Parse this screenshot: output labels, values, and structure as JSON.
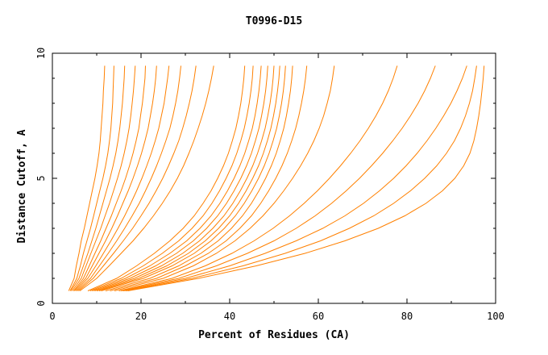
{
  "chart_data": {
    "type": "line",
    "title": "T0996-D15",
    "xlabel": "Percent of Residues (CA)",
    "ylabel": "Distance Cutoff, A",
    "xlim": [
      0,
      100
    ],
    "ylim": [
      0,
      10
    ],
    "x_ticks": [
      0,
      20,
      40,
      60,
      80,
      100
    ],
    "y_ticks": [
      0,
      5,
      10
    ],
    "line_color": "#ff8000",
    "grid": false,
    "cutoffs": [
      0.5,
      1,
      1.5,
      2,
      2.5,
      3,
      3.5,
      4,
      4.5,
      5,
      5.5,
      6,
      6.5,
      7,
      7.5,
      8,
      8.5,
      9,
      9.5
    ],
    "series": [
      {
        "x": [
          3.7,
          4.9,
          5.4,
          6.0,
          6.5,
          7.2,
          7.8,
          8.4,
          9.0,
          9.6,
          10.1,
          10.5,
          10.8,
          11.0,
          11.2,
          11.4,
          11.5,
          11.7,
          11.8
        ]
      },
      {
        "x": [
          4.0,
          5.5,
          6.3,
          7.0,
          7.8,
          8.6,
          9.3,
          10.0,
          10.7,
          11.4,
          12.0,
          12.5,
          12.9,
          13.2,
          13.4,
          13.6,
          13.7,
          13.8,
          13.9
        ]
      },
      {
        "x": [
          4.2,
          6.0,
          7.0,
          8.0,
          8.9,
          9.8,
          10.6,
          11.4,
          12.2,
          13.0,
          13.7,
          14.3,
          14.8,
          15.2,
          15.5,
          15.8,
          16.0,
          16.2,
          16.3
        ]
      },
      {
        "x": [
          4.5,
          6.5,
          7.6,
          8.7,
          9.8,
          10.9,
          11.9,
          12.9,
          13.8,
          14.7,
          15.5,
          16.2,
          16.8,
          17.3,
          17.7,
          18.0,
          18.3,
          18.5,
          18.7
        ]
      },
      {
        "x": [
          4.8,
          7.0,
          8.3,
          9.6,
          10.9,
          12.1,
          13.3,
          14.4,
          15.5,
          16.5,
          17.4,
          18.2,
          18.9,
          19.5,
          19.9,
          20.3,
          20.6,
          20.9,
          21.0
        ]
      },
      {
        "x": [
          5.0,
          7.5,
          9.0,
          10.5,
          12.0,
          13.4,
          14.7,
          15.9,
          17.1,
          18.2,
          19.2,
          20.1,
          20.9,
          21.6,
          22.1,
          22.6,
          23.0,
          23.3,
          23.5
        ]
      },
      {
        "x": [
          5.3,
          8.0,
          9.8,
          11.5,
          13.2,
          14.8,
          16.3,
          17.7,
          19.0,
          20.2,
          21.3,
          22.3,
          23.2,
          24.0,
          24.6,
          25.2,
          25.6,
          26.0,
          26.3
        ]
      },
      {
        "x": [
          5.6,
          8.6,
          10.6,
          12.6,
          14.5,
          16.3,
          18.0,
          19.6,
          21.0,
          22.3,
          23.5,
          24.6,
          25.6,
          26.5,
          27.2,
          27.8,
          28.3,
          28.7,
          29.0
        ]
      },
      {
        "x": [
          5.9,
          9.2,
          11.5,
          13.8,
          16.0,
          18.1,
          20.0,
          21.8,
          23.4,
          24.9,
          26.2,
          27.4,
          28.5,
          29.4,
          30.2,
          30.9,
          31.5,
          32.0,
          32.4
        ]
      },
      {
        "x": [
          6.2,
          10.0,
          12.8,
          15.5,
          18.2,
          20.6,
          22.8,
          24.8,
          26.6,
          28.2,
          29.6,
          30.8,
          31.9,
          32.9,
          33.8,
          34.6,
          35.3,
          35.9,
          36.4
        ]
      },
      {
        "x": [
          8.0,
          14.5,
          19.0,
          23.0,
          26.5,
          29.5,
          32.0,
          34.0,
          35.8,
          37.3,
          38.6,
          39.7,
          40.6,
          41.4,
          42.0,
          42.5,
          42.9,
          43.2,
          43.4
        ]
      },
      {
        "x": [
          8.5,
          15.5,
          20.5,
          24.8,
          28.5,
          31.5,
          34.0,
          36.0,
          37.7,
          39.2,
          40.5,
          41.6,
          42.5,
          43.3,
          43.9,
          44.4,
          44.8,
          45.1,
          45.3
        ]
      },
      {
        "x": [
          9.0,
          16.5,
          22.0,
          26.5,
          30.3,
          33.3,
          35.8,
          37.8,
          39.5,
          41.0,
          42.3,
          43.4,
          44.3,
          45.1,
          45.7,
          46.2,
          46.6,
          46.9,
          47.1
        ]
      },
      {
        "x": [
          9.5,
          17.5,
          23.3,
          28.0,
          31.8,
          34.8,
          37.3,
          39.3,
          41.0,
          42.5,
          43.8,
          44.9,
          45.8,
          46.6,
          47.2,
          47.7,
          48.1,
          48.4,
          48.6
        ]
      },
      {
        "x": [
          10.0,
          18.5,
          24.6,
          29.4,
          33.2,
          36.2,
          38.7,
          40.7,
          42.4,
          43.9,
          45.2,
          46.3,
          47.2,
          48.0,
          48.6,
          49.1,
          49.5,
          49.8,
          50.0
        ]
      },
      {
        "x": [
          10.5,
          19.5,
          25.8,
          30.7,
          34.5,
          37.5,
          40.0,
          42.0,
          43.7,
          45.2,
          46.5,
          47.6,
          48.5,
          49.3,
          49.9,
          50.4,
          50.8,
          51.1,
          51.3
        ]
      },
      {
        "x": [
          11.0,
          20.5,
          27.0,
          32.0,
          35.8,
          38.8,
          41.3,
          43.3,
          45.0,
          46.5,
          47.8,
          48.9,
          49.8,
          50.6,
          51.2,
          51.7,
          52.1,
          52.4,
          52.6
        ]
      },
      {
        "x": [
          12.0,
          22.0,
          28.5,
          33.5,
          37.4,
          40.4,
          42.9,
          44.9,
          46.6,
          48.1,
          49.4,
          50.5,
          51.4,
          52.2,
          52.8,
          53.3,
          53.7,
          54.0,
          54.2
        ]
      },
      {
        "x": [
          13.0,
          23.5,
          30.0,
          35.2,
          39.2,
          42.3,
          44.9,
          47.0,
          48.8,
          50.4,
          51.8,
          53.0,
          54.0,
          54.9,
          55.6,
          56.2,
          56.7,
          57.1,
          57.4
        ]
      },
      {
        "x": [
          14.0,
          25.0,
          31.8,
          37.0,
          41.2,
          44.6,
          47.5,
          50.0,
          52.2,
          54.2,
          56.0,
          57.6,
          59.0,
          60.2,
          61.2,
          62.0,
          62.7,
          63.2,
          63.6
        ]
      },
      {
        "x": [
          15.0,
          27.0,
          34.5,
          40.5,
          45.5,
          49.8,
          53.5,
          56.8,
          59.8,
          62.5,
          65.0,
          67.3,
          69.4,
          71.3,
          73.0,
          74.5,
          75.8,
          76.9,
          77.8
        ]
      },
      {
        "x": [
          15.5,
          28.5,
          37.0,
          44.0,
          50.0,
          55.0,
          59.3,
          63.0,
          66.3,
          69.3,
          72.0,
          74.5,
          76.8,
          78.9,
          80.8,
          82.5,
          84.0,
          85.3,
          86.4
        ]
      },
      {
        "x": [
          16.0,
          30.0,
          40.0,
          48.0,
          55.0,
          61.0,
          66.0,
          70.2,
          73.8,
          77.0,
          79.8,
          82.3,
          84.5,
          86.5,
          88.3,
          89.9,
          91.3,
          92.5,
          93.5
        ]
      },
      {
        "x": [
          16.5,
          31.5,
          43.0,
          52.5,
          60.5,
          67.0,
          72.5,
          77.0,
          80.8,
          84.0,
          86.7,
          88.9,
          90.7,
          92.1,
          93.2,
          94.1,
          94.8,
          95.3,
          95.7
        ]
      },
      {
        "x": [
          17.0,
          33.0,
          46.0,
          57.0,
          66.0,
          73.5,
          79.5,
          84.3,
          88.0,
          90.8,
          92.8,
          94.2,
          95.1,
          95.7,
          96.2,
          96.6,
          96.9,
          97.2,
          97.4
        ]
      }
    ]
  }
}
